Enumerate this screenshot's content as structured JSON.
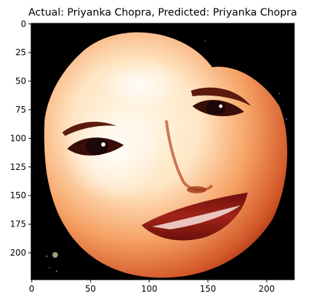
{
  "chart_data": {
    "type": "image",
    "title": "Actual: Priyanka Chopra, Predicted: Priyanka Chopra",
    "image": {
      "width": 224,
      "height": 224,
      "description_icon": "face-image"
    },
    "xaxis": {
      "ticks": [
        0,
        50,
        100,
        150,
        200
      ],
      "range": [
        -0.5,
        223.5
      ]
    },
    "yaxis": {
      "ticks": [
        0,
        25,
        50,
        75,
        100,
        125,
        150,
        175,
        200
      ],
      "range": [
        223.5,
        -0.5
      ],
      "inverted": true
    },
    "grid": false
  },
  "colors": {
    "background": "#000000",
    "skin_highlight": "#fff1d8",
    "skin_mid": "#f7b27a",
    "skin_shadow": "#c2451c",
    "lips": "#8a1a14",
    "eyes": "#1c0806"
  }
}
